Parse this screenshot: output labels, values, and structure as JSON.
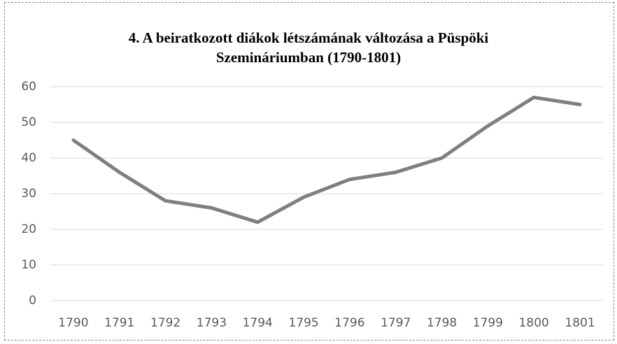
{
  "chart_data": {
    "type": "line",
    "title": "4. A beiratkozott diákok létszámának változása a Püspöki Szemináriumban (1790-1801)",
    "categories": [
      "1790",
      "1791",
      "1792",
      "1793",
      "1794",
      "1795",
      "1796",
      "1797",
      "1798",
      "1799",
      "1800",
      "1801"
    ],
    "values": [
      45,
      36,
      28,
      26,
      22,
      29,
      34,
      36,
      40,
      49,
      57,
      55
    ],
    "color": "#7f7f7f",
    "ylim": [
      0,
      60
    ],
    "yticks": [
      0,
      10,
      20,
      30,
      40,
      50,
      60
    ],
    "grid": true
  }
}
